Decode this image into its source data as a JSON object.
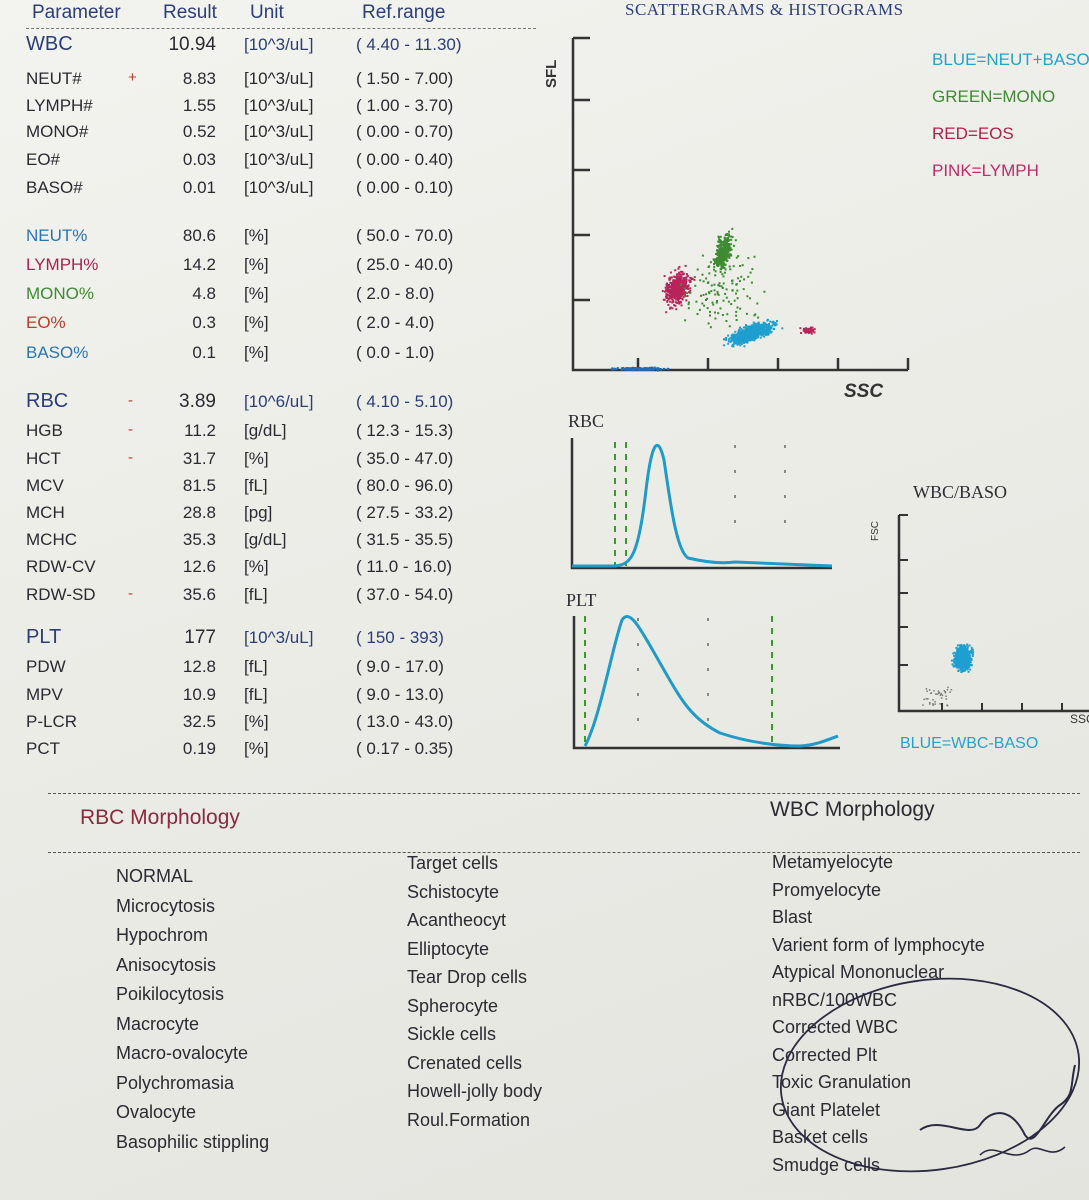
{
  "header": {
    "parameter": "Parameter",
    "result": "Result",
    "unit": "Unit",
    "ref_range": "Ref.range",
    "scatter_title": "SCATTERGRAMS & HISTOGRAMS"
  },
  "results": [
    {
      "name": "WBC",
      "flag": "",
      "result": "10.94",
      "unit": "[10^3/uL]",
      "ref": "( 4.40 -  11.30)",
      "color": "#2c3e78",
      "group": true
    },
    {
      "name": "NEUT#",
      "flag": "+",
      "result": "8.83",
      "unit": "[10^3/uL]",
      "ref": "( 1.50 -  7.00)",
      "color": "#2a2a33"
    },
    {
      "name": "LYMPH#",
      "flag": "",
      "result": "1.55",
      "unit": "[10^3/uL]",
      "ref": "( 1.00 -  3.70)",
      "color": "#2a2a33"
    },
    {
      "name": "MONO#",
      "flag": "",
      "result": "0.52",
      "unit": "[10^3/uL]",
      "ref": "( 0.00 -  0.70)",
      "color": "#2a2a33"
    },
    {
      "name": "EO#",
      "flag": "",
      "result": "0.03",
      "unit": "[10^3/uL]",
      "ref": "( 0.00 -  0.40)",
      "color": "#2a2a33"
    },
    {
      "name": "BASO#",
      "flag": "",
      "result": "0.01",
      "unit": "[10^3/uL]",
      "ref": "( 0.00 -  0.10)",
      "color": "#2a2a33"
    },
    {
      "name": "NEUT%",
      "flag": "",
      "result": "80.6",
      "unit": "[%]",
      "ref": "( 50.0 -  70.0)",
      "color": "#2b74b3"
    },
    {
      "name": "LYMPH%",
      "flag": "",
      "result": "14.2",
      "unit": "[%]",
      "ref": "( 25.0 -  40.0)",
      "color": "#a8234f"
    },
    {
      "name": "MONO%",
      "flag": "",
      "result": "4.8",
      "unit": "[%]",
      "ref": "( 2.0 -  8.0)",
      "color": "#3f8a32"
    },
    {
      "name": "EO%",
      "flag": "",
      "result": "0.3",
      "unit": "[%]",
      "ref": "( 2.0 -  4.0)",
      "color": "#c0392b"
    },
    {
      "name": "BASO%",
      "flag": "",
      "result": "0.1",
      "unit": "[%]",
      "ref": "( 0.0 -  1.0)",
      "color": "#2b74b3"
    },
    {
      "name": "RBC",
      "flag": "-",
      "result": "3.89",
      "unit": "[10^6/uL]",
      "ref": "( 4.10 -  5.10)",
      "color": "#2c3e78",
      "group": true
    },
    {
      "name": "HGB",
      "flag": "-",
      "result": "11.2",
      "unit": "[g/dL]",
      "ref": "( 12.3 -  15.3)",
      "color": "#2a2a33"
    },
    {
      "name": "HCT",
      "flag": "-",
      "result": "31.7",
      "unit": "[%]",
      "ref": "( 35.0 -  47.0)",
      "color": "#2a2a33"
    },
    {
      "name": "MCV",
      "flag": "",
      "result": "81.5",
      "unit": "[fL]",
      "ref": "( 80.0 -  96.0)",
      "color": "#2a2a33"
    },
    {
      "name": "MCH",
      "flag": "",
      "result": "28.8",
      "unit": "[pg]",
      "ref": "( 27.5 -  33.2)",
      "color": "#2a2a33"
    },
    {
      "name": "MCHC",
      "flag": "",
      "result": "35.3",
      "unit": "[g/dL]",
      "ref": "( 31.5 -  35.5)",
      "color": "#2a2a33"
    },
    {
      "name": "RDW-CV",
      "flag": "",
      "result": "12.6",
      "unit": "[%]",
      "ref": "( 11.0 -  16.0)",
      "color": "#2a2a33"
    },
    {
      "name": "RDW-SD",
      "flag": "-",
      "result": "35.6",
      "unit": "[fL]",
      "ref": "( 37.0 -  54.0)",
      "color": "#2a2a33"
    },
    {
      "name": "PLT",
      "flag": "",
      "result": "177",
      "unit": "[10^3/uL]",
      "ref": "( 150 -  393)",
      "color": "#2c3e78",
      "group": true
    },
    {
      "name": "PDW",
      "flag": "",
      "result": "12.8",
      "unit": "[fL]",
      "ref": "( 9.0 -  17.0)",
      "color": "#2a2a33"
    },
    {
      "name": "MPV",
      "flag": "",
      "result": "10.9",
      "unit": "[fL]",
      "ref": "( 9.0 -  13.0)",
      "color": "#2a2a33"
    },
    {
      "name": "P-LCR",
      "flag": "",
      "result": "32.5",
      "unit": "[%]",
      "ref": "( 13.0 -  43.0)",
      "color": "#2a2a33"
    },
    {
      "name": "PCT",
      "flag": "",
      "result": "0.19",
      "unit": "[%]",
      "ref": "( 0.17 -  0.35)",
      "color": "#2a2a33"
    }
  ],
  "scatter": {
    "y_label": "SFL",
    "x_label": "SSC",
    "legend": [
      {
        "text": "BLUE=NEUT+BASO",
        "color": "#2aa0c8"
      },
      {
        "text": "GREEN=MONO",
        "color": "#3f8a32"
      },
      {
        "text": "RED=EOS",
        "color": "#b0234a"
      },
      {
        "text": "PINK=LYMPH",
        "color": "#c02a6a"
      }
    ]
  },
  "rbc_hist": {
    "title": "RBC"
  },
  "plt_hist": {
    "title": "PLT"
  },
  "wbc_baso": {
    "title": "WBC/BASO",
    "y_label": "FSC",
    "x_label": "SSC",
    "legend": "BLUE=WBC-BASO"
  },
  "rbc_morphology": {
    "title": "RBC Morphology",
    "col1": [
      "NORMAL",
      "Microcytosis",
      "Hypochrom",
      "Anisocytosis",
      "Poikilocytosis",
      "Macrocyte",
      "Macro-ovalocyte",
      "Polychromasia",
      "Ovalocyte",
      "Basophilic stippling"
    ],
    "col2": [
      "Target cells",
      "Schistocyte",
      "Acantheocyt",
      "Elliptocyte",
      "Tear Drop cells",
      "Spherocyte",
      "Sickle cells",
      "Crenated cells",
      "Howell-jolly body",
      "Roul.Formation"
    ]
  },
  "wbc_morphology": {
    "title": "WBC Morphology",
    "items": [
      "Metamyelocyte",
      "Promyelocyte",
      "Blast",
      "Varient form of lymphocyte",
      "Atypical Mononuclear",
      "nRBC/100WBC",
      "Corrected WBC",
      "Corrected Plt",
      "Toxic Granulation",
      "Giant Platelet",
      "Basket cells",
      "Smudge cells"
    ]
  }
}
